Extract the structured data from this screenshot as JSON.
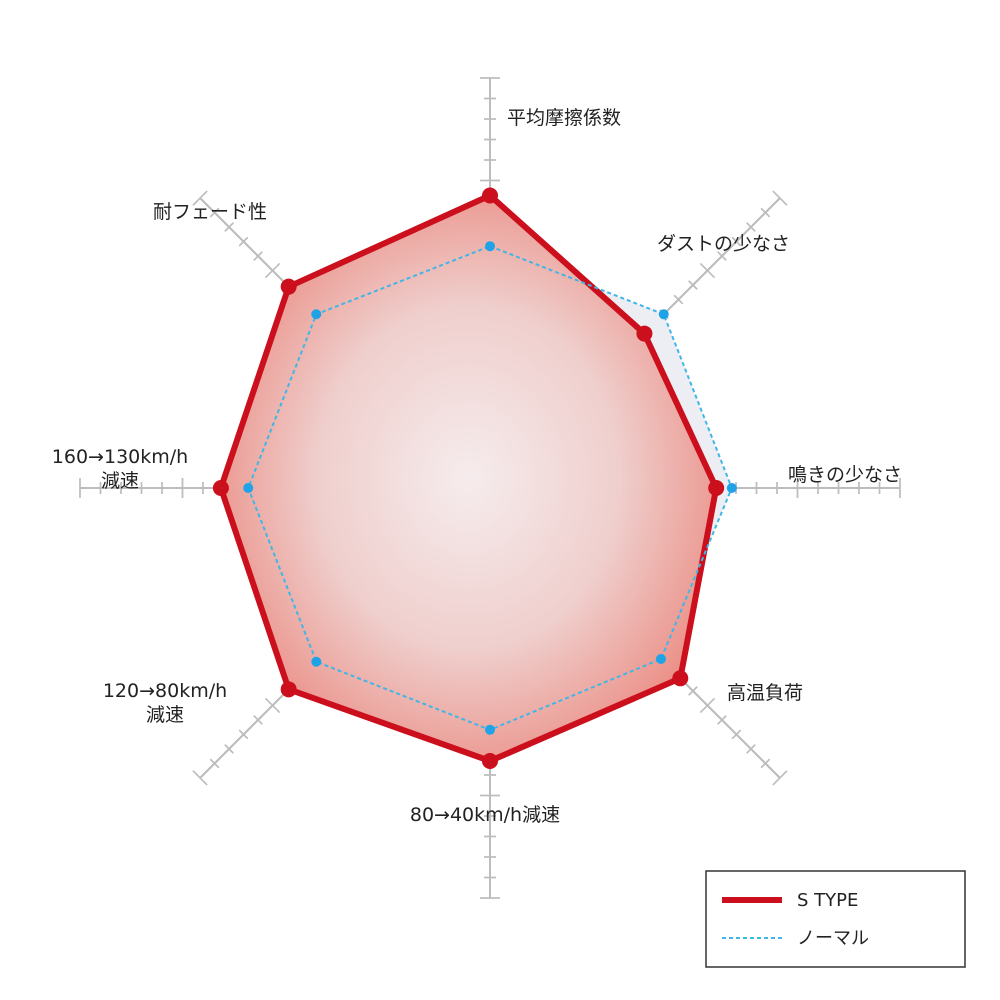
{
  "chart_data": {
    "type": "radar",
    "scale_max": 10,
    "axes": [
      {
        "label_lines": [
          "平均摩擦係数"
        ]
      },
      {
        "label_lines": [
          "ダストの少なさ"
        ]
      },
      {
        "label_lines": [
          "鳴きの少なさ"
        ]
      },
      {
        "label_lines": [
          "高温負荷"
        ]
      },
      {
        "label_lines": [
          "80→40km/h減速"
        ]
      },
      {
        "label_lines": [
          "120→80km/h",
          "減速"
        ]
      },
      {
        "label_lines": [
          "160→130km/h",
          "減速"
        ]
      },
      {
        "label_lines": [
          "耐フェード性"
        ]
      }
    ],
    "series": [
      {
        "name": "S TYPE",
        "values": [
          7.5,
          5.6,
          5.8,
          6.9,
          7.0,
          7.3,
          6.9,
          7.3
        ],
        "color": "#cc0f1c",
        "style": "solid"
      },
      {
        "name": "ノーマル",
        "values": [
          6.2,
          6.3,
          6.2,
          6.2,
          6.2,
          6.3,
          6.2,
          6.3
        ],
        "color": "#3fb6e6",
        "style": "dashed"
      }
    ]
  },
  "legend": {
    "items": [
      {
        "label": "S TYPE",
        "color": "#cc0f1c",
        "style": "solid"
      },
      {
        "label": "ノーマル",
        "color": "#3fb6e6",
        "style": "dashed"
      }
    ]
  }
}
